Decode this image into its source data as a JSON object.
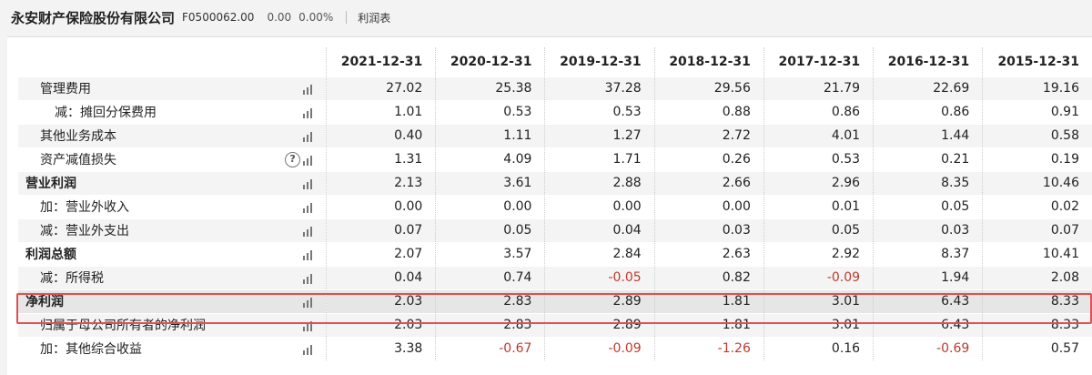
{
  "header": {
    "company": "永安财产保险股份有限公司",
    "code": "F0500062.00",
    "change": "0.00",
    "change_pct": "0.00%",
    "report_name": "利润表"
  },
  "table": {
    "columns": [
      "2021-12-31",
      "2020-12-31",
      "2019-12-31",
      "2018-12-31",
      "2017-12-31",
      "2016-12-31",
      "2015-12-31"
    ],
    "rows": [
      {
        "label": "管理费用",
        "level": 1,
        "bold": false,
        "help": false,
        "values": [
          "27.02",
          "25.38",
          "37.28",
          "29.56",
          "21.79",
          "22.69",
          "19.16"
        ]
      },
      {
        "label": "减：摊回分保费用",
        "level": 2,
        "bold": false,
        "help": false,
        "values": [
          "1.01",
          "0.53",
          "0.53",
          "0.88",
          "0.86",
          "0.86",
          "0.91"
        ]
      },
      {
        "label": "其他业务成本",
        "level": 1,
        "bold": false,
        "help": false,
        "values": [
          "0.40",
          "1.11",
          "1.27",
          "2.72",
          "4.01",
          "1.44",
          "0.58"
        ]
      },
      {
        "label": "资产减值损失",
        "level": 1,
        "bold": false,
        "help": true,
        "values": [
          "1.31",
          "4.09",
          "1.71",
          "0.26",
          "0.53",
          "0.21",
          "0.19"
        ]
      },
      {
        "label": "营业利润",
        "level": 0,
        "bold": true,
        "help": false,
        "values": [
          "2.13",
          "3.61",
          "2.88",
          "2.66",
          "2.96",
          "8.35",
          "10.46"
        ]
      },
      {
        "label": "加：营业外收入",
        "level": 1,
        "bold": false,
        "help": false,
        "values": [
          "0.00",
          "0.00",
          "0.00",
          "0.00",
          "0.01",
          "0.05",
          "0.02"
        ]
      },
      {
        "label": "减：营业外支出",
        "level": 1,
        "bold": false,
        "help": false,
        "values": [
          "0.07",
          "0.05",
          "0.04",
          "0.03",
          "0.05",
          "0.03",
          "0.07"
        ]
      },
      {
        "label": "利润总额",
        "level": 0,
        "bold": true,
        "help": false,
        "values": [
          "2.07",
          "3.57",
          "2.84",
          "2.63",
          "2.92",
          "8.37",
          "10.41"
        ]
      },
      {
        "label": "减：所得税",
        "level": 1,
        "bold": false,
        "help": false,
        "values": [
          "0.04",
          "0.74",
          "-0.05",
          "0.82",
          "-0.09",
          "1.94",
          "2.08"
        ]
      },
      {
        "label": "净利润",
        "level": 0,
        "bold": true,
        "help": false,
        "highlight": true,
        "values": [
          "2.03",
          "2.83",
          "2.89",
          "1.81",
          "3.01",
          "6.43",
          "8.33"
        ]
      },
      {
        "label": "归属于母公司所有者的净利润",
        "level": 1,
        "bold": false,
        "help": false,
        "values": [
          "2.03",
          "2.83",
          "2.89",
          "1.81",
          "3.01",
          "6.43",
          "8.33"
        ]
      },
      {
        "label": "加：其他综合收益",
        "level": 1,
        "bold": false,
        "help": false,
        "values": [
          "3.38",
          "-0.67",
          "-0.09",
          "-1.26",
          "0.16",
          "-0.69",
          "0.57"
        ]
      }
    ]
  },
  "icons": {
    "chart": "bar-chart-icon",
    "help": "help-icon"
  },
  "colors": {
    "negative": "#c0392b",
    "highlight_border": "#e05050"
  }
}
